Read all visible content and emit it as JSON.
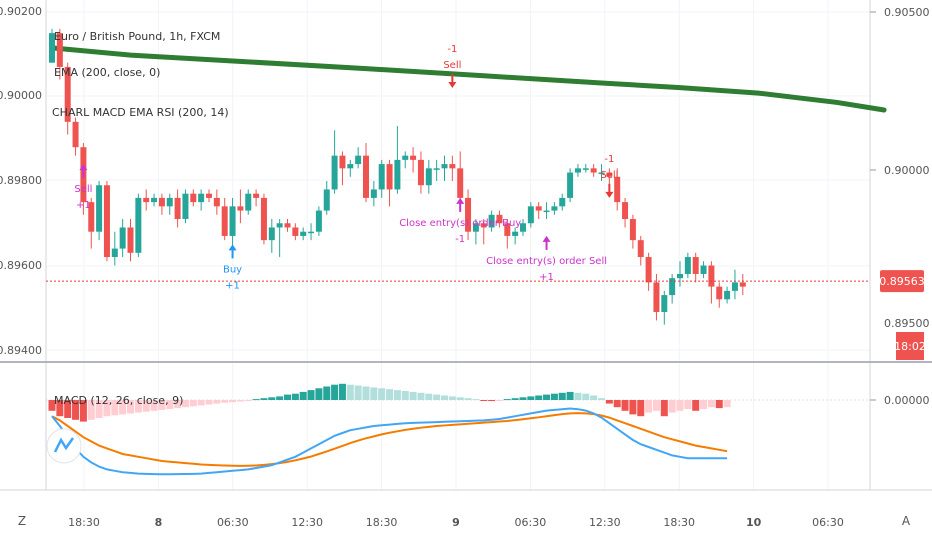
{
  "header": {
    "symbol_title": "Euro / British Pound, 1h, FXCM",
    "indicator_1": "EMA (200, close, 0)",
    "indicator_2": "CHARL MACD EMA RSI (200, 14)"
  },
  "right_scale": {
    "ticks": [
      "0.90500",
      "0.90000"
    ],
    "price_badge": "0.89563",
    "partial_tick": "0.89500",
    "time_badge": "18:02",
    "macd_zero": "0.00000"
  },
  "macd_pane": {
    "title": "MACD (12, 26, close, 9)"
  },
  "bottom_bar": {
    "left_button": "Z",
    "right_button": "A"
  },
  "colors": {
    "bull": "#26a69a",
    "bear": "#ef5350",
    "ema": "#2e7d32",
    "strategy_signal": "#cc33cc",
    "buy": "#2196f3",
    "sell": "#e53935",
    "macd_line": "#42a5f5",
    "signal_line": "#f57c00",
    "price_line": "#e53935",
    "hist_pos_strong": "#26a69a",
    "hist_pos_weak": "#b2dfdb",
    "hist_neg_strong": "#ef5350",
    "hist_neg_weak": "#ffcdd2"
  },
  "chart_data": {
    "type": "candlestick",
    "price_axis": {
      "ticks": [
        0.894,
        0.896,
        0.898,
        0.9,
        0.902
      ],
      "ylim": [
        0.8938,
        0.9022
      ]
    },
    "x_axis": {
      "ticks": [
        "18:30",
        "8",
        "06:30",
        "12:30",
        "18:30",
        "9",
        "06:30",
        "12:30",
        "18:30",
        "10",
        "06:30"
      ]
    },
    "last_price": 0.89563,
    "ema200": [
      [
        0,
        0.90115
      ],
      [
        10,
        0.90098
      ],
      [
        25,
        0.90082
      ],
      [
        40,
        0.90066
      ],
      [
        55,
        0.90049
      ],
      [
        70,
        0.90032
      ],
      [
        80,
        0.90021
      ],
      [
        90,
        0.90008
      ],
      [
        100,
        0.89986
      ],
      [
        106,
        0.89968
      ]
    ],
    "candles": [
      [
        0.9008,
        0.9015,
        0.9008,
        0.9016
      ],
      [
        0.9015,
        0.9007,
        0.9004,
        0.9016
      ],
      [
        0.9007,
        0.8994,
        0.8991,
        0.9008
      ],
      [
        0.8994,
        0.8988,
        0.8986,
        0.8995
      ],
      [
        0.8988,
        0.8975,
        0.8972,
        0.8989
      ],
      [
        0.8975,
        0.8968,
        0.8964,
        0.8976
      ],
      [
        0.8968,
        0.8979,
        0.8966,
        0.898
      ],
      [
        0.8979,
        0.8962,
        0.8961,
        0.898
      ],
      [
        0.8962,
        0.8964,
        0.896,
        0.8968
      ],
      [
        0.8964,
        0.8969,
        0.8962,
        0.8971
      ],
      [
        0.8969,
        0.8963,
        0.8961,
        0.8971
      ],
      [
        0.8963,
        0.8976,
        0.8962,
        0.8977
      ],
      [
        0.8976,
        0.8975,
        0.8973,
        0.8978
      ],
      [
        0.8975,
        0.8976,
        0.8974,
        0.8977
      ],
      [
        0.8976,
        0.8974,
        0.8972,
        0.8977
      ],
      [
        0.8974,
        0.8976,
        0.8972,
        0.8977
      ],
      [
        0.8976,
        0.8971,
        0.8969,
        0.8978
      ],
      [
        0.8971,
        0.8977,
        0.897,
        0.8978
      ],
      [
        0.8977,
        0.8975,
        0.8974,
        0.8978
      ],
      [
        0.8975,
        0.8977,
        0.8973,
        0.8978
      ],
      [
        0.8977,
        0.8976,
        0.8975,
        0.8978
      ],
      [
        0.8976,
        0.8974,
        0.8972,
        0.8978
      ],
      [
        0.8974,
        0.8967,
        0.8966,
        0.8976
      ],
      [
        0.8967,
        0.8974,
        0.8964,
        0.8976
      ],
      [
        0.8974,
        0.8973,
        0.897,
        0.8978
      ],
      [
        0.8973,
        0.8977,
        0.8972,
        0.8978
      ],
      [
        0.8977,
        0.8976,
        0.8974,
        0.8978
      ],
      [
        0.8976,
        0.8966,
        0.8965,
        0.8977
      ],
      [
        0.8966,
        0.8969,
        0.8963,
        0.8971
      ],
      [
        0.8969,
        0.897,
        0.8962,
        0.8971
      ],
      [
        0.897,
        0.8969,
        0.8968,
        0.8971
      ],
      [
        0.8969,
        0.8967,
        0.8966,
        0.897
      ],
      [
        0.8967,
        0.8968,
        0.8966,
        0.8969
      ],
      [
        0.8968,
        0.8968,
        0.8966,
        0.897
      ],
      [
        0.8968,
        0.8973,
        0.8967,
        0.8974
      ],
      [
        0.8973,
        0.8978,
        0.8972,
        0.898
      ],
      [
        0.8978,
        0.8986,
        0.8977,
        0.8992
      ],
      [
        0.8986,
        0.8983,
        0.8979,
        0.8987
      ],
      [
        0.8983,
        0.8984,
        0.8981,
        0.8985
      ],
      [
        0.8984,
        0.8986,
        0.8983,
        0.8988
      ],
      [
        0.8986,
        0.8976,
        0.8975,
        0.8989
      ],
      [
        0.8976,
        0.8978,
        0.8974,
        0.898
      ],
      [
        0.8978,
        0.8984,
        0.8976,
        0.8985
      ],
      [
        0.8984,
        0.8978,
        0.8974,
        0.8985
      ],
      [
        0.8978,
        0.8985,
        0.8977,
        0.8993
      ],
      [
        0.8985,
        0.8986,
        0.8983,
        0.8987
      ],
      [
        0.8986,
        0.8985,
        0.8982,
        0.8988
      ],
      [
        0.8985,
        0.8979,
        0.8977,
        0.8987
      ],
      [
        0.8979,
        0.8983,
        0.8977,
        0.8985
      ],
      [
        0.8983,
        0.8983,
        0.898,
        0.8985
      ],
      [
        0.8983,
        0.8984,
        0.898,
        0.8986
      ],
      [
        0.8984,
        0.8983,
        0.898,
        0.8986
      ],
      [
        0.8983,
        0.8976,
        0.8975,
        0.8987
      ],
      [
        0.8976,
        0.8968,
        0.8966,
        0.8978
      ],
      [
        0.8968,
        0.897,
        0.8965,
        0.8971
      ],
      [
        0.897,
        0.8969,
        0.8965,
        0.8971
      ],
      [
        0.8969,
        0.8972,
        0.8968,
        0.8973
      ],
      [
        0.8972,
        0.897,
        0.8969,
        0.8973
      ],
      [
        0.897,
        0.8967,
        0.8964,
        0.8971
      ],
      [
        0.8967,
        0.8968,
        0.8965,
        0.8969
      ],
      [
        0.8968,
        0.897,
        0.8967,
        0.8971
      ],
      [
        0.897,
        0.8974,
        0.8969,
        0.8975
      ],
      [
        0.8974,
        0.8973,
        0.8971,
        0.8975
      ],
      [
        0.8973,
        0.8973,
        0.8971,
        0.8975
      ],
      [
        0.8973,
        0.8974,
        0.8972,
        0.8975
      ],
      [
        0.8974,
        0.8976,
        0.8973,
        0.8977
      ],
      [
        0.8976,
        0.8982,
        0.8975,
        0.8983
      ],
      [
        0.8982,
        0.8983,
        0.8981,
        0.8984
      ],
      [
        0.8983,
        0.8983,
        0.8982,
        0.8984
      ],
      [
        0.8983,
        0.8982,
        0.8981,
        0.8984
      ],
      [
        0.8982,
        0.8982,
        0.898,
        0.8984
      ],
      [
        0.8982,
        0.8981,
        0.8979,
        0.8983
      ],
      [
        0.8981,
        0.8975,
        0.8973,
        0.8983
      ],
      [
        0.8975,
        0.8971,
        0.8969,
        0.8976
      ],
      [
        0.8971,
        0.8966,
        0.8964,
        0.8972
      ],
      [
        0.8966,
        0.8962,
        0.896,
        0.8967
      ],
      [
        0.8962,
        0.8956,
        0.8954,
        0.8963
      ],
      [
        0.8956,
        0.8949,
        0.8947,
        0.8958
      ],
      [
        0.8949,
        0.8953,
        0.8946,
        0.8954
      ],
      [
        0.8953,
        0.8957,
        0.8951,
        0.8958
      ],
      [
        0.8957,
        0.8958,
        0.8955,
        0.8961
      ],
      [
        0.8958,
        0.8962,
        0.8957,
        0.8963
      ],
      [
        0.8962,
        0.8958,
        0.8956,
        0.8963
      ],
      [
        0.8958,
        0.896,
        0.8957,
        0.8961
      ],
      [
        0.896,
        0.8955,
        0.8951,
        0.8961
      ],
      [
        0.8955,
        0.8952,
        0.895,
        0.8956
      ],
      [
        0.8952,
        0.8954,
        0.8951,
        0.8955
      ],
      [
        0.8954,
        0.8956,
        0.8952,
        0.8959
      ],
      [
        0.8956,
        0.8955,
        0.8953,
        0.8958
      ]
    ],
    "signals": [
      {
        "label": "Sell",
        "pos": "+1",
        "i": 4,
        "price": 0.8984,
        "kind": "close"
      },
      {
        "label": "Buy",
        "pos": "+1",
        "i": 23,
        "price": 0.8965,
        "kind": "buy"
      },
      {
        "label": "Sell",
        "pos": "-1",
        "i": 51,
        "price": 0.9002,
        "kind": "sell"
      },
      {
        "label": "Close entry(s) order Buy",
        "pos": "-1",
        "i": 52,
        "price": 0.8976,
        "kind": "close"
      },
      {
        "label": "Close entry(s) order Sell",
        "pos": "+1",
        "i": 63,
        "price": 0.8967,
        "kind": "close"
      },
      {
        "label": "Sell",
        "pos": "-1",
        "i": 71,
        "price": 0.8976,
        "kind": "sell"
      }
    ],
    "macd": {
      "zero_label": "0.00000",
      "histogram": [
        -0.6,
        -0.9,
        -1.0,
        -1.1,
        -1.2,
        -1.1,
        -1.0,
        -0.9,
        -0.85,
        -0.8,
        -0.75,
        -0.7,
        -0.65,
        -0.6,
        -0.55,
        -0.5,
        -0.45,
        -0.4,
        -0.35,
        -0.3,
        -0.25,
        -0.2,
        -0.15,
        -0.12,
        -0.08,
        -0.05,
        0.05,
        0.1,
        0.15,
        0.2,
        0.3,
        0.35,
        0.45,
        0.55,
        0.65,
        0.75,
        0.85,
        0.9,
        0.85,
        0.8,
        0.75,
        0.7,
        0.65,
        0.6,
        0.55,
        0.5,
        0.45,
        0.4,
        0.35,
        0.3,
        0.25,
        0.2,
        0.15,
        0.1,
        0.05,
        -0.05,
        -0.06,
        -0.04,
        0.05,
        0.1,
        0.15,
        0.2,
        0.25,
        0.3,
        0.35,
        0.4,
        0.45,
        0.4,
        0.35,
        0.25,
        0.1,
        -0.2,
        -0.4,
        -0.6,
        -0.8,
        -0.9,
        -0.7,
        -0.6,
        -0.9,
        -0.7,
        -0.6,
        -0.5,
        -0.6,
        -0.5,
        -0.4,
        -0.45,
        -0.4
      ],
      "macd_line": [
        -0.3,
        -1.0,
        -1.8,
        -2.6,
        -3.2,
        -3.6,
        -3.9,
        -4.1,
        -4.2,
        -4.3,
        -4.35,
        -4.4,
        -4.42,
        -4.44,
        -4.45,
        -4.45,
        -4.44,
        -4.43,
        -4.42,
        -4.4,
        -4.35,
        -4.3,
        -4.25,
        -4.2,
        -4.15,
        -4.1,
        -4.0,
        -3.9,
        -3.8,
        -3.6,
        -3.4,
        -3.2,
        -2.9,
        -2.6,
        -2.3,
        -2.0,
        -1.7,
        -1.5,
        -1.3,
        -1.2,
        -1.1,
        -1.0,
        -0.95,
        -0.9,
        -0.85,
        -0.8,
        -0.78,
        -0.76,
        -0.74,
        -0.72,
        -0.7,
        -0.68,
        -0.66,
        -0.64,
        -0.62,
        -0.6,
        -0.55,
        -0.5,
        -0.4,
        -0.3,
        -0.2,
        -0.1,
        0.0,
        0.1,
        0.15,
        0.2,
        0.25,
        0.2,
        0.1,
        -0.1,
        -0.4,
        -0.8,
        -1.2,
        -1.6,
        -2.0,
        -2.3,
        -2.5,
        -2.7,
        -2.9,
        -3.1,
        -3.2,
        -3.3,
        -3.3,
        -3.3,
        -3.3,
        -3.3,
        -3.3
      ],
      "signal_line": [
        -0.3,
        -0.6,
        -1.0,
        -1.4,
        -1.8,
        -2.1,
        -2.4,
        -2.6,
        -2.8,
        -3.0,
        -3.1,
        -3.2,
        -3.3,
        -3.4,
        -3.5,
        -3.55,
        -3.6,
        -3.65,
        -3.7,
        -3.75,
        -3.78,
        -3.8,
        -3.82,
        -3.84,
        -3.85,
        -3.84,
        -3.82,
        -3.78,
        -3.72,
        -3.65,
        -3.56,
        -3.45,
        -3.32,
        -3.18,
        -3.0,
        -2.82,
        -2.62,
        -2.42,
        -2.22,
        -2.04,
        -1.88,
        -1.74,
        -1.6,
        -1.48,
        -1.38,
        -1.28,
        -1.2,
        -1.12,
        -1.06,
        -1.0,
        -0.96,
        -0.92,
        -0.88,
        -0.84,
        -0.8,
        -0.76,
        -0.72,
        -0.68,
        -0.64,
        -0.58,
        -0.52,
        -0.45,
        -0.38,
        -0.3,
        -0.22,
        -0.15,
        -0.1,
        -0.08,
        -0.1,
        -0.15,
        -0.25,
        -0.4,
        -0.6,
        -0.8,
        -1.0,
        -1.2,
        -1.4,
        -1.6,
        -1.8,
        -1.95,
        -2.1,
        -2.25,
        -2.4,
        -2.5,
        -2.6,
        -2.7,
        -2.8
      ]
    }
  }
}
